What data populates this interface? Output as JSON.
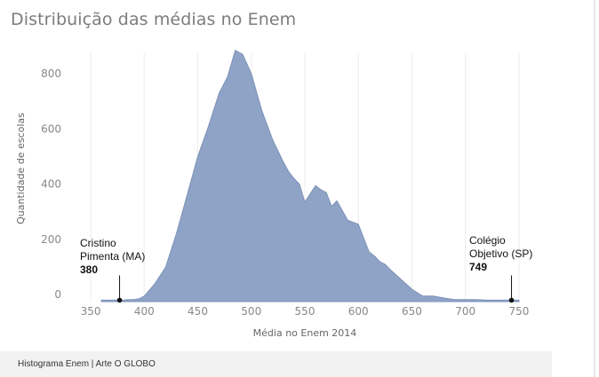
{
  "title": "Distribuição das médias no Enem",
  "footer": "Histograma Enem | Arte O GLOBO",
  "colors": {
    "area": "#8fa3c6",
    "area_stroke": "#7d92b8",
    "grid": "#ececec",
    "tick_text": "#888888",
    "marker": "#111111"
  },
  "chart_data": {
    "type": "area",
    "title": "Distribuição das médias no Enem",
    "xlabel": "Média no Enem 2014",
    "ylabel": "Quantidade de escolas",
    "xlim": [
      345,
      755
    ],
    "ylim": [
      -25,
      900
    ],
    "x_ticks": [
      350,
      400,
      450,
      500,
      550,
      600,
      650,
      700,
      750
    ],
    "y_ticks": [
      0,
      200,
      400,
      600,
      800
    ],
    "grid": "vertical",
    "legend": "none",
    "series": [
      {
        "x": [
          360,
          370,
          380,
          385,
          390,
          395,
          400,
          410,
          420,
          430,
          440,
          450,
          460,
          470,
          478,
          485,
          492,
          500,
          510,
          520,
          530,
          535,
          540,
          545,
          550,
          560,
          565,
          570,
          575,
          580,
          590,
          600,
          610,
          615,
          620,
          625,
          630,
          640,
          650,
          660,
          670,
          680,
          690,
          700,
          710,
          720,
          730,
          740,
          750
        ],
        "y": [
          -20,
          -20,
          -20,
          -18,
          -18,
          -15,
          -5,
          40,
          100,
          220,
          360,
          500,
          610,
          730,
          790,
          885,
          870,
          800,
          665,
          560,
          480,
          445,
          420,
          400,
          335,
          395,
          380,
          370,
          320,
          340,
          270,
          255,
          155,
          140,
          120,
          110,
          90,
          55,
          20,
          -5,
          -5,
          -12,
          -18,
          -18,
          -18,
          -20,
          -20,
          -20,
          -20
        ]
      }
    ],
    "annotations": [
      {
        "x": 377,
        "y": -20,
        "lines": [
          "Cristino",
          "Pimenta (MA)"
        ],
        "value": "380",
        "align": "left"
      },
      {
        "x": 743,
        "y": -20,
        "lines": [
          "Colégio",
          "Objetivo (SP)"
        ],
        "value": "749",
        "align": "left"
      }
    ]
  }
}
